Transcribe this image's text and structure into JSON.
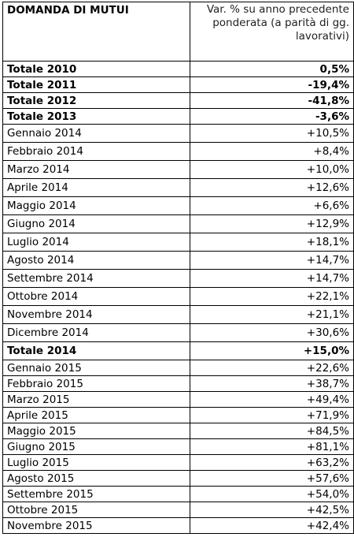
{
  "table": {
    "header": {
      "col1": "DOMANDA DI MUTUI",
      "col2": "Var. % su anno precedente ponderata (a parità di gg. lavorativi)"
    },
    "rows": [
      {
        "label": "Totale 2010",
        "value": "0,5%",
        "bold": true
      },
      {
        "label": "Totale 2011",
        "value": "-19,4%",
        "bold": true
      },
      {
        "label": "Totale 2012",
        "value": "-41,8%",
        "bold": true
      },
      {
        "label": "Totale 2013",
        "value": "-3,6%",
        "bold": true
      },
      {
        "label": "Gennaio 2014",
        "value": "+10,5%",
        "bold": false
      },
      {
        "label": "Febbraio 2014",
        "value": "+8,4%",
        "bold": false
      },
      {
        "label": "Marzo 2014",
        "value": "+10,0%",
        "bold": false
      },
      {
        "label": "Aprile 2014",
        "value": "+12,6%",
        "bold": false
      },
      {
        "label": "Maggio 2014",
        "value": "+6,6%",
        "bold": false
      },
      {
        "label": "Giugno 2014",
        "value": "+12,9%",
        "bold": false
      },
      {
        "label": "Luglio 2014",
        "value": "+18,1%",
        "bold": false
      },
      {
        "label": "Agosto 2014",
        "value": "+14,7%",
        "bold": false
      },
      {
        "label": "Settembre 2014",
        "value": "+14,7%",
        "bold": false
      },
      {
        "label": "Ottobre 2014",
        "value": "+22,1%",
        "bold": false
      },
      {
        "label": "Novembre 2014",
        "value": "+21,1%",
        "bold": false
      },
      {
        "label": "Dicembre 2014",
        "value": "+30,6%",
        "bold": false
      },
      {
        "label": "Totale 2014",
        "value": "+15,0%",
        "bold": true
      },
      {
        "label": "Gennaio 2015",
        "value": "+22,6%",
        "bold": false
      },
      {
        "label": "Febbraio 2015",
        "value": "+38,7%",
        "bold": false
      },
      {
        "label": "Marzo 2015",
        "value": "+49,4%",
        "bold": false
      },
      {
        "label": "Aprile 2015",
        "value": "+71,9%",
        "bold": false
      },
      {
        "label": "Maggio 2015",
        "value": "+84,5%",
        "bold": false
      },
      {
        "label": "Giugno 2015",
        "value": "+81,1%",
        "bold": false
      },
      {
        "label": "Luglio 2015",
        "value": "+63,2%",
        "bold": false
      },
      {
        "label": "Agosto 2015",
        "value": "+57,6%",
        "bold": false
      },
      {
        "label": "Settembre 2015",
        "value": "+54,0%",
        "bold": false
      },
      {
        "label": "Ottobre 2015",
        "value": "+42,5%",
        "bold": false
      },
      {
        "label": "Novembre 2015",
        "value": "+42,4%",
        "bold": false
      }
    ]
  }
}
